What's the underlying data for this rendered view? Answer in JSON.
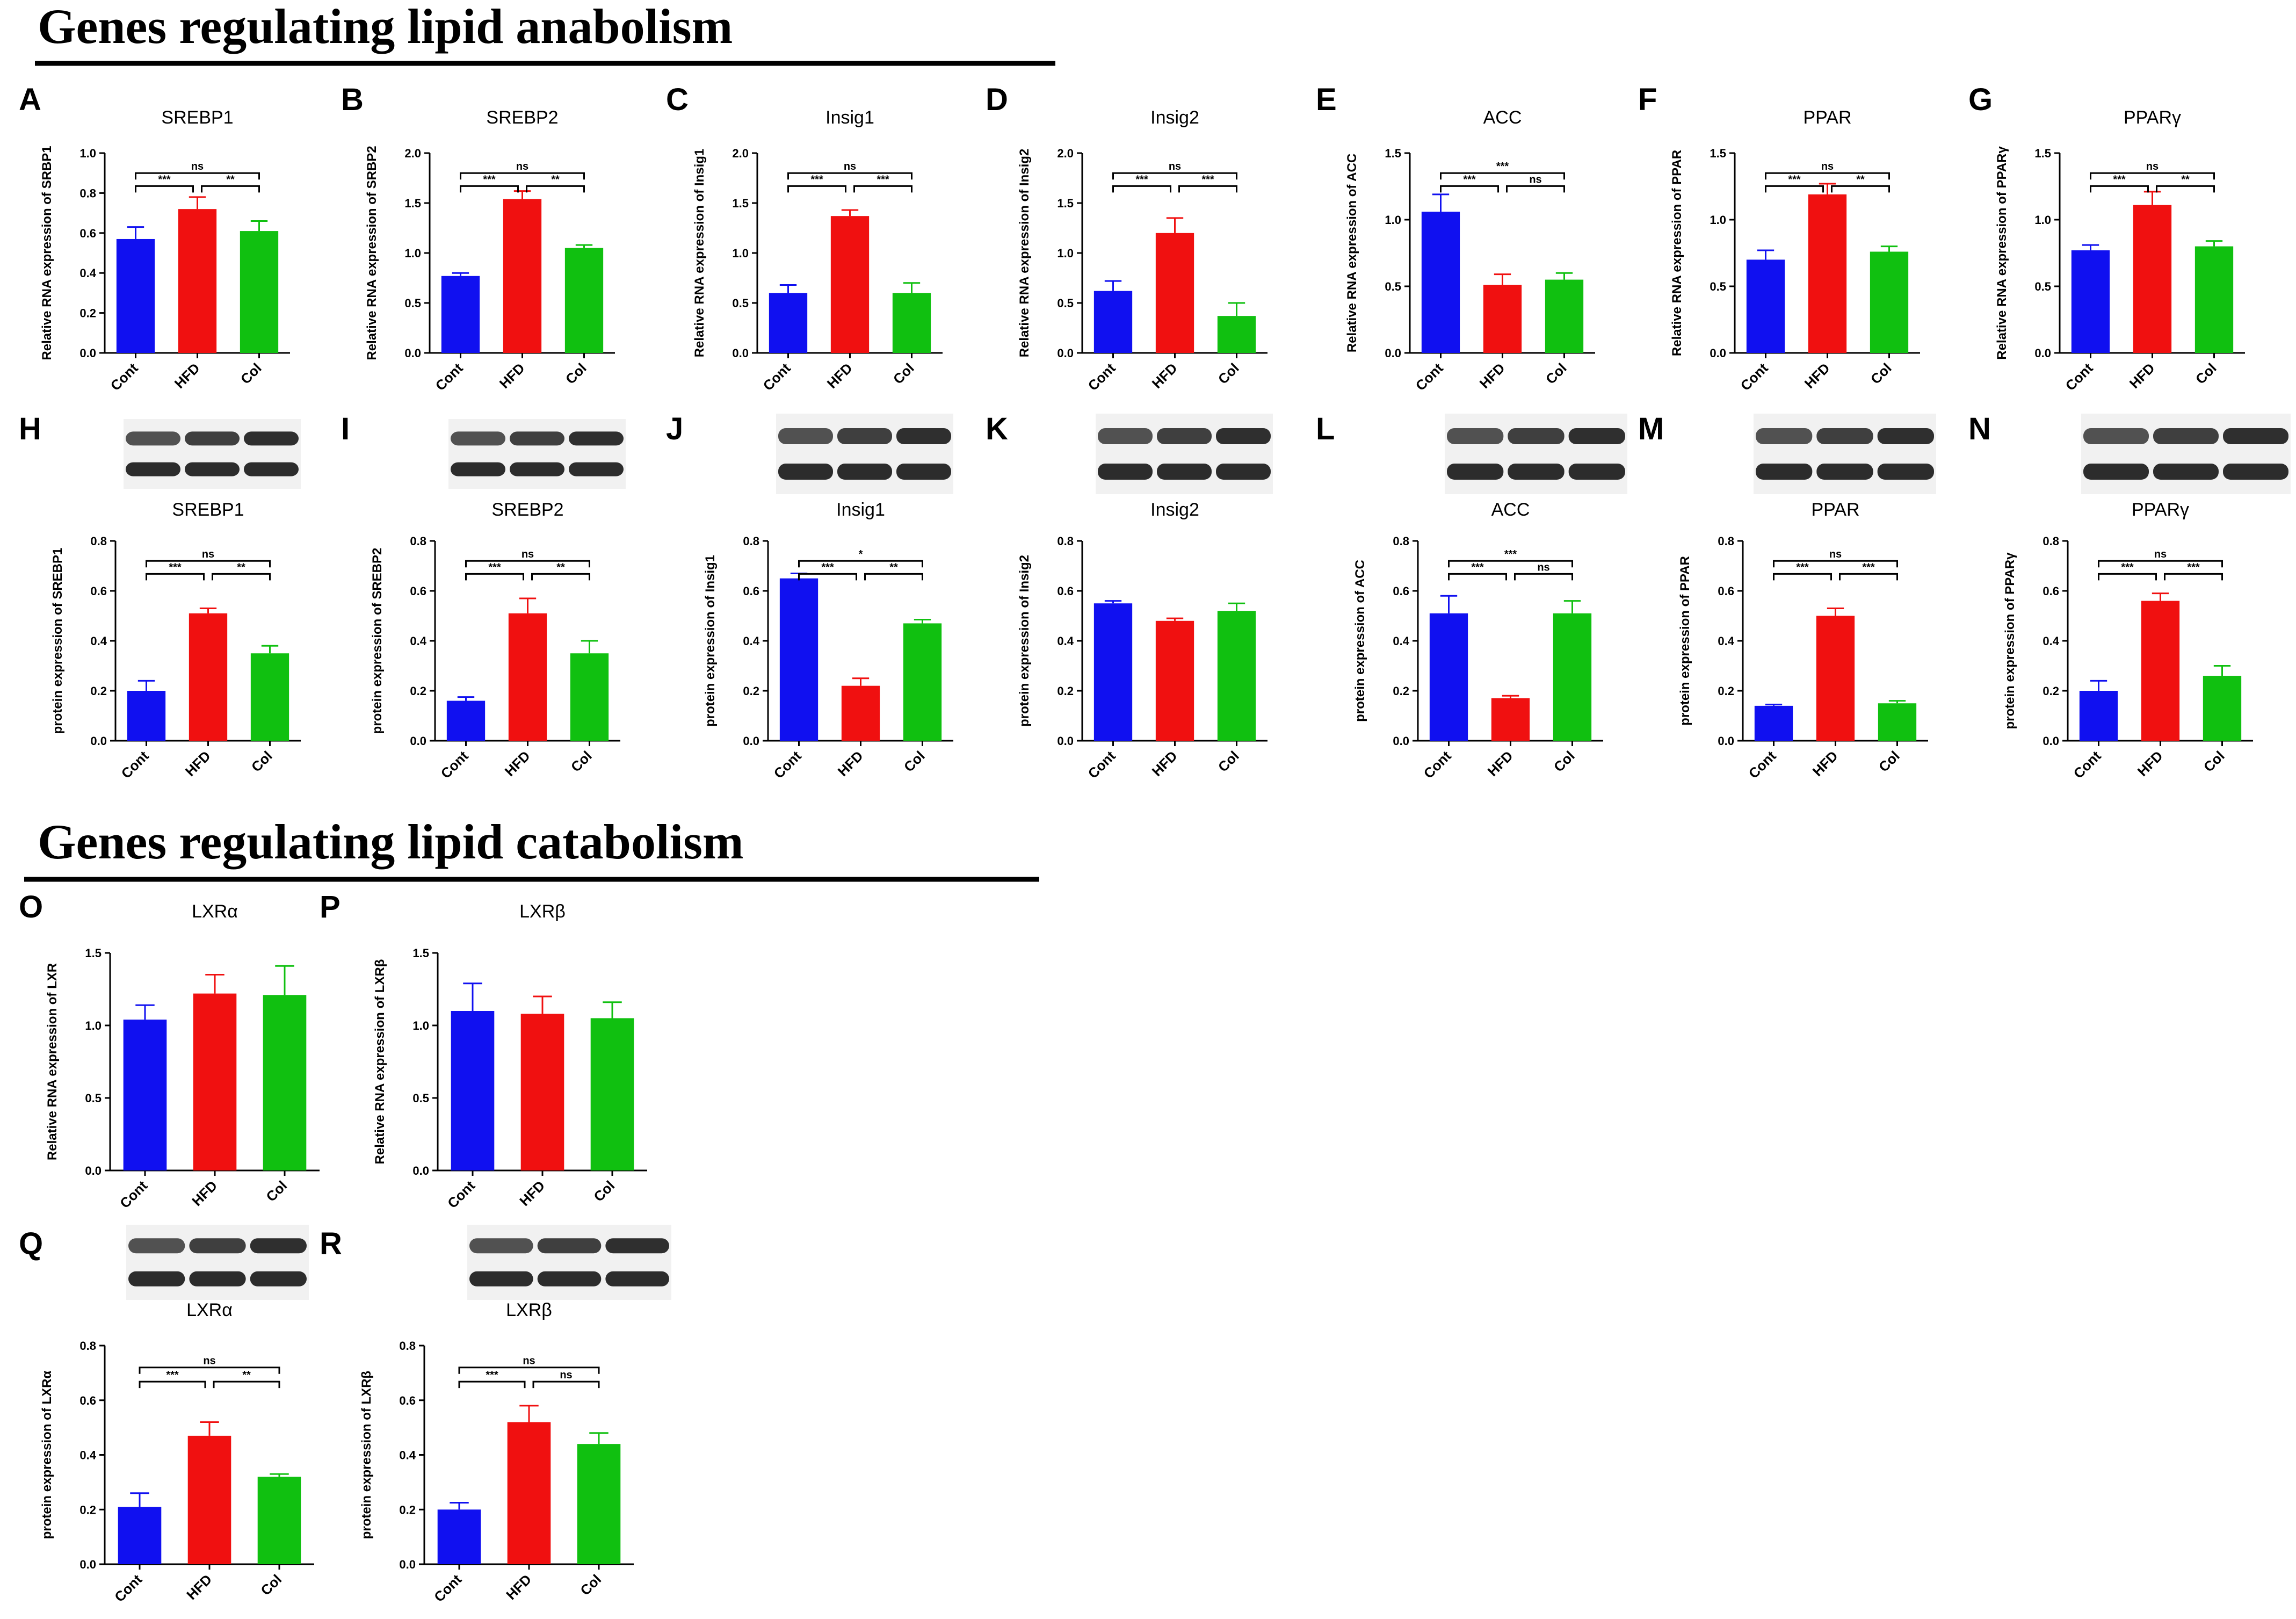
{
  "sections": {
    "anabolism_title": "Genes regulating lipid anabolism",
    "catabolism_title": "Genes regulating lipid catabolism"
  },
  "colors": {
    "Cont": "#1010f0",
    "HFD": "#f01010",
    "Col": "#10c010",
    "text": "#000000"
  },
  "chart_data": [
    {
      "letter": "A",
      "type": "bar",
      "title": "SREBP1",
      "ylabel": "Relative RNA expression of SRBP1",
      "categories": [
        "Cont",
        "HFD",
        "Col"
      ],
      "values": [
        0.57,
        0.72,
        0.61
      ],
      "errors": [
        0.06,
        0.06,
        0.05
      ],
      "ylim": [
        0,
        1.0
      ],
      "yticks": [
        "0.0",
        "0.2",
        "0.4",
        "0.6",
        "0.8",
        "1.0"
      ],
      "brackets": [
        {
          "pair": [
            "Cont",
            "Col"
          ],
          "label": "ns"
        },
        {
          "pair": [
            "Cont",
            "HFD"
          ],
          "label": "***"
        },
        {
          "pair": [
            "HFD",
            "Col"
          ],
          "label": "**"
        }
      ]
    },
    {
      "letter": "B",
      "type": "bar",
      "title": "SREBP2",
      "ylabel": "Relative RNA expression of SRBP2",
      "categories": [
        "Cont",
        "HFD",
        "Col"
      ],
      "values": [
        0.77,
        1.54,
        1.05
      ],
      "errors": [
        0.03,
        0.08,
        0.03
      ],
      "ylim": [
        0,
        2.0
      ],
      "yticks": [
        "0.0",
        "0.5",
        "1.0",
        "1.5",
        "2.0"
      ],
      "brackets": [
        {
          "pair": [
            "Cont",
            "Col"
          ],
          "label": "ns"
        },
        {
          "pair": [
            "Cont",
            "HFD"
          ],
          "label": "***"
        },
        {
          "pair": [
            "HFD",
            "Col"
          ],
          "label": "**"
        }
      ]
    },
    {
      "letter": "C",
      "type": "bar",
      "title": "Insig1",
      "ylabel": "Relative RNA expression of Insig1",
      "categories": [
        "Cont",
        "HFD",
        "Col"
      ],
      "values": [
        0.6,
        1.37,
        0.6
      ],
      "errors": [
        0.08,
        0.06,
        0.1
      ],
      "ylim": [
        0,
        2.0
      ],
      "yticks": [
        "0.0",
        "0.5",
        "1.0",
        "1.5",
        "2.0"
      ],
      "brackets": [
        {
          "pair": [
            "Cont",
            "Col"
          ],
          "label": "ns"
        },
        {
          "pair": [
            "Cont",
            "HFD"
          ],
          "label": "***"
        },
        {
          "pair": [
            "HFD",
            "Col"
          ],
          "label": "***"
        }
      ]
    },
    {
      "letter": "D",
      "type": "bar",
      "title": "Insig2",
      "ylabel": "Relative RNA expression of Insig2",
      "categories": [
        "Cont",
        "HFD",
        "Col"
      ],
      "values": [
        0.62,
        1.2,
        0.37
      ],
      "errors": [
        0.1,
        0.15,
        0.13
      ],
      "ylim": [
        0,
        2.0
      ],
      "yticks": [
        "0.0",
        "0.5",
        "1.0",
        "1.5",
        "2.0"
      ],
      "brackets": [
        {
          "pair": [
            "Cont",
            "Col"
          ],
          "label": "ns"
        },
        {
          "pair": [
            "Cont",
            "HFD"
          ],
          "label": "***"
        },
        {
          "pair": [
            "HFD",
            "Col"
          ],
          "label": "***"
        }
      ]
    },
    {
      "letter": "E",
      "type": "bar",
      "title": "ACC",
      "ylabel": "Relative RNA expression of ACC",
      "categories": [
        "Cont",
        "HFD",
        "Col"
      ],
      "values": [
        1.06,
        0.51,
        0.55
      ],
      "errors": [
        0.13,
        0.08,
        0.05
      ],
      "ylim": [
        0,
        1.5
      ],
      "yticks": [
        "0.0",
        "0.5",
        "1.0",
        "1.5"
      ],
      "brackets": [
        {
          "pair": [
            "Cont",
            "Col"
          ],
          "label": "***"
        },
        {
          "pair": [
            "Cont",
            "HFD"
          ],
          "label": "***"
        },
        {
          "pair": [
            "HFD",
            "Col"
          ],
          "label": "ns"
        }
      ]
    },
    {
      "letter": "F",
      "type": "bar",
      "title": "PPAR",
      "ylabel": "Relative RNA expression of PPAR",
      "categories": [
        "Cont",
        "HFD",
        "Col"
      ],
      "values": [
        0.7,
        1.19,
        0.76
      ],
      "errors": [
        0.07,
        0.08,
        0.04
      ],
      "ylim": [
        0,
        1.5
      ],
      "yticks": [
        "0.0",
        "0.5",
        "1.0",
        "1.5"
      ],
      "brackets": [
        {
          "pair": [
            "Cont",
            "Col"
          ],
          "label": "ns"
        },
        {
          "pair": [
            "Cont",
            "HFD"
          ],
          "label": "***"
        },
        {
          "pair": [
            "HFD",
            "Col"
          ],
          "label": "**"
        }
      ]
    },
    {
      "letter": "G",
      "type": "bar",
      "title": "PPARγ",
      "ylabel": "Relative RNA expression of PPARγ",
      "categories": [
        "Cont",
        "HFD",
        "Col"
      ],
      "values": [
        0.77,
        1.11,
        0.8
      ],
      "errors": [
        0.04,
        0.1,
        0.04
      ],
      "ylim": [
        0,
        1.5
      ],
      "yticks": [
        "0.0",
        "0.5",
        "1.0",
        "1.5"
      ],
      "brackets": [
        {
          "pair": [
            "Cont",
            "Col"
          ],
          "label": "ns"
        },
        {
          "pair": [
            "Cont",
            "HFD"
          ],
          "label": "***"
        },
        {
          "pair": [
            "HFD",
            "Col"
          ],
          "label": "**"
        }
      ]
    },
    {
      "letter": "H",
      "type": "bar",
      "title": "SREBP1",
      "ylabel": "protein expression of SREBP1",
      "categories": [
        "Cont",
        "HFD",
        "Col"
      ],
      "values": [
        0.2,
        0.51,
        0.35
      ],
      "errors": [
        0.04,
        0.02,
        0.03
      ],
      "ylim": [
        0,
        0.8
      ],
      "yticks": [
        "0.0",
        "0.2",
        "0.4",
        "0.6",
        "0.8"
      ],
      "brackets": [
        {
          "pair": [
            "Cont",
            "Col"
          ],
          "label": "ns"
        },
        {
          "pair": [
            "Cont",
            "HFD"
          ],
          "label": "***"
        },
        {
          "pair": [
            "HFD",
            "Col"
          ],
          "label": "**"
        }
      ]
    },
    {
      "letter": "I",
      "type": "bar",
      "title": "SREBP2",
      "ylabel": "protein expression of SREBP2",
      "categories": [
        "Cont",
        "HFD",
        "Col"
      ],
      "values": [
        0.16,
        0.51,
        0.35
      ],
      "errors": [
        0.015,
        0.06,
        0.05
      ],
      "ylim": [
        0,
        0.8
      ],
      "yticks": [
        "0.0",
        "0.2",
        "0.4",
        "0.6",
        "0.8"
      ],
      "brackets": [
        {
          "pair": [
            "Cont",
            "Col"
          ],
          "label": "ns"
        },
        {
          "pair": [
            "Cont",
            "HFD"
          ],
          "label": "***"
        },
        {
          "pair": [
            "HFD",
            "Col"
          ],
          "label": "**"
        }
      ]
    },
    {
      "letter": "J",
      "type": "bar",
      "title": "Insig1",
      "ylabel": "protein expression of Insig1",
      "categories": [
        "Cont",
        "HFD",
        "Col"
      ],
      "values": [
        0.65,
        0.22,
        0.47
      ],
      "errors": [
        0.02,
        0.03,
        0.015
      ],
      "ylim": [
        0,
        0.8
      ],
      "yticks": [
        "0.0",
        "0.2",
        "0.4",
        "0.6",
        "0.8"
      ],
      "brackets": [
        {
          "pair": [
            "Cont",
            "Col"
          ],
          "label": "*"
        },
        {
          "pair": [
            "Cont",
            "HFD"
          ],
          "label": "***"
        },
        {
          "pair": [
            "HFD",
            "Col"
          ],
          "label": "**"
        }
      ]
    },
    {
      "letter": "K",
      "type": "bar",
      "title": "Insig2",
      "ylabel": "protein expression of Insig2",
      "categories": [
        "Cont",
        "HFD",
        "Col"
      ],
      "values": [
        0.55,
        0.48,
        0.52
      ],
      "errors": [
        0.01,
        0.01,
        0.03
      ],
      "ylim": [
        0,
        0.8
      ],
      "yticks": [
        "0.0",
        "0.2",
        "0.4",
        "0.6",
        "0.8"
      ],
      "brackets": []
    },
    {
      "letter": "L",
      "type": "bar",
      "title": "ACC",
      "ylabel": "protein expression of ACC",
      "categories": [
        "Cont",
        "HFD",
        "Col"
      ],
      "values": [
        0.51,
        0.17,
        0.51
      ],
      "errors": [
        0.07,
        0.01,
        0.05
      ],
      "ylim": [
        0,
        0.8
      ],
      "yticks": [
        "0.0",
        "0.2",
        "0.4",
        "0.6",
        "0.8"
      ],
      "brackets": [
        {
          "pair": [
            "Cont",
            "Col"
          ],
          "label": "***"
        },
        {
          "pair": [
            "Cont",
            "HFD"
          ],
          "label": "***"
        },
        {
          "pair": [
            "HFD",
            "Col"
          ],
          "label": "ns"
        }
      ]
    },
    {
      "letter": "M",
      "type": "bar",
      "title": "PPAR",
      "ylabel": "protein expression of PPAR",
      "categories": [
        "Cont",
        "HFD",
        "Col"
      ],
      "values": [
        0.14,
        0.5,
        0.15
      ],
      "errors": [
        0.005,
        0.03,
        0.01
      ],
      "ylim": [
        0,
        0.8
      ],
      "yticks": [
        "0.0",
        "0.2",
        "0.4",
        "0.6",
        "0.8"
      ],
      "brackets": [
        {
          "pair": [
            "Cont",
            "Col"
          ],
          "label": "ns"
        },
        {
          "pair": [
            "Cont",
            "HFD"
          ],
          "label": "***"
        },
        {
          "pair": [
            "HFD",
            "Col"
          ],
          "label": "***"
        }
      ]
    },
    {
      "letter": "N",
      "type": "bar",
      "title": "PPARγ",
      "ylabel": "protein expression of PPARγ",
      "categories": [
        "Cont",
        "HFD",
        "Col"
      ],
      "values": [
        0.2,
        0.56,
        0.26
      ],
      "errors": [
        0.04,
        0.03,
        0.04
      ],
      "ylim": [
        0,
        0.8
      ],
      "yticks": [
        "0.0",
        "0.2",
        "0.4",
        "0.6",
        "0.8"
      ],
      "brackets": [
        {
          "pair": [
            "Cont",
            "Col"
          ],
          "label": "ns"
        },
        {
          "pair": [
            "Cont",
            "HFD"
          ],
          "label": "***"
        },
        {
          "pair": [
            "HFD",
            "Col"
          ],
          "label": "***"
        }
      ]
    },
    {
      "letter": "O",
      "type": "bar",
      "title": "LXRα",
      "ylabel": "Relative RNA expression of LXR",
      "categories": [
        "Cont",
        "HFD",
        "Col"
      ],
      "values": [
        1.04,
        1.22,
        1.21
      ],
      "errors": [
        0.1,
        0.13,
        0.2
      ],
      "ylim": [
        0,
        1.5
      ],
      "yticks": [
        "0.0",
        "0.5",
        "1.0",
        "1.5"
      ],
      "brackets": []
    },
    {
      "letter": "P",
      "type": "bar",
      "title": "LXRβ",
      "ylabel": "Relative RNA expression of LXRβ",
      "categories": [
        "Cont",
        "HFD",
        "Col"
      ],
      "values": [
        1.1,
        1.08,
        1.05
      ],
      "errors": [
        0.19,
        0.12,
        0.11
      ],
      "ylim": [
        0,
        1.5
      ],
      "yticks": [
        "0.0",
        "0.5",
        "1.0",
        "1.5"
      ],
      "brackets": []
    },
    {
      "letter": "Q",
      "type": "bar",
      "title": "LXRα",
      "ylabel": "protein expression of LXRα",
      "categories": [
        "Cont",
        "HFD",
        "Col"
      ],
      "values": [
        0.21,
        0.47,
        0.32
      ],
      "errors": [
        0.05,
        0.05,
        0.01
      ],
      "ylim": [
        0,
        0.8
      ],
      "yticks": [
        "0.0",
        "0.2",
        "0.4",
        "0.6",
        "0.8"
      ],
      "brackets": [
        {
          "pair": [
            "Cont",
            "Col"
          ],
          "label": "ns"
        },
        {
          "pair": [
            "Cont",
            "HFD"
          ],
          "label": "***"
        },
        {
          "pair": [
            "HFD",
            "Col"
          ],
          "label": "**"
        }
      ]
    },
    {
      "letter": "R",
      "type": "bar",
      "title": "LXRβ",
      "ylabel": "protein expression of LXRβ",
      "categories": [
        "Cont",
        "HFD",
        "Col"
      ],
      "values": [
        0.2,
        0.52,
        0.44
      ],
      "errors": [
        0.025,
        0.06,
        0.04
      ],
      "ylim": [
        0,
        0.8
      ],
      "yticks": [
        "0.0",
        "0.2",
        "0.4",
        "0.6",
        "0.8"
      ],
      "brackets": [
        {
          "pair": [
            "Cont",
            "Col"
          ],
          "label": "ns"
        },
        {
          "pair": [
            "Cont",
            "HFD"
          ],
          "label": "***"
        },
        {
          "pair": [
            "HFD",
            "Col"
          ],
          "label": "ns"
        }
      ]
    }
  ]
}
